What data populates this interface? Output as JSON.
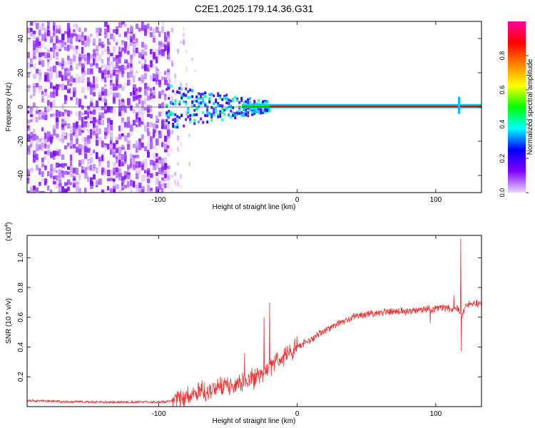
{
  "title": "C2E1.2025.179.14.36.G31",
  "chart_data": [
    {
      "type": "heatmap",
      "xlabel": "Height of straight line (km)",
      "ylabel": "Frequency (Hz)",
      "xlim": [
        -195,
        133
      ],
      "ylim": [
        -50,
        50
      ],
      "x_ticks": [
        -100,
        0,
        100
      ],
      "y_ticks": [
        -40,
        -20,
        0,
        20,
        40
      ],
      "colorbar": {
        "label": "Normalized spectral amplitude",
        "range": [
          0,
          1
        ],
        "ticks": [
          "0.0",
          "0.2",
          "0.4",
          "0.6",
          "0.8"
        ],
        "stops": [
          "#e8d8ff",
          "#8000ff",
          "#0000ff",
          "#00ffff",
          "#00ff00",
          "#ffff00",
          "#ff8000",
          "#ff0000",
          "#ff00a0"
        ]
      },
      "features": {
        "noise_region_x": [
          -195,
          -93
        ],
        "noise_fade_x": [
          -93,
          -72
        ],
        "scatter_region_x": [
          -95,
          -20
        ],
        "line_region_x": [
          -20,
          133
        ],
        "line_frequency": 0.5,
        "line_color": "#ff0000"
      }
    },
    {
      "type": "line",
      "xlabel": "Height of straight line (km)",
      "ylabel": "SNR (10 * v/v)",
      "scale_label": "(x10",
      "scale_exponent": "4",
      "scale_suffix": ")",
      "xlim": [
        -195,
        133
      ],
      "ylim": [
        0,
        1.15
      ],
      "x_ticks": [
        -100,
        0,
        100
      ],
      "y_ticks": [
        "0.2",
        "0.4",
        "0.6",
        "0.8",
        "1.0"
      ],
      "y_tick_values": [
        0.2,
        0.4,
        0.6,
        0.8,
        1.0
      ],
      "color": "#ee3333",
      "series": [
        {
          "x": [
            -195,
            -175,
            -150,
            -125,
            -105,
            -97,
            -90,
            -82,
            -75,
            -65,
            -55,
            -45,
            -37,
            -30,
            -25,
            -18,
            -12,
            -5,
            0,
            10,
            20,
            30,
            40,
            50,
            60,
            70,
            80,
            90,
            100,
            110,
            116,
            119,
            121,
            125,
            133
          ],
          "y": [
            0.04,
            0.035,
            0.03,
            0.03,
            0.03,
            0.03,
            0.04,
            0.06,
            0.09,
            0.11,
            0.13,
            0.15,
            0.17,
            0.19,
            0.22,
            0.28,
            0.33,
            0.37,
            0.4,
            0.45,
            0.51,
            0.56,
            0.6,
            0.62,
            0.63,
            0.64,
            0.64,
            0.65,
            0.66,
            0.66,
            0.66,
            0.6,
            0.68,
            0.69,
            0.7
          ],
          "spikes": [
            {
              "x": -24,
              "y": 0.6
            },
            {
              "x": -20,
              "y": 0.7
            },
            {
              "x": -38,
              "y": 0.36
            },
            {
              "x": 118,
              "y": 1.13
            },
            {
              "x": 118.5,
              "y": 0.37
            },
            {
              "x": 96,
              "y": 0.56
            },
            {
              "x": 113,
              "y": 0.75
            }
          ]
        }
      ]
    }
  ]
}
